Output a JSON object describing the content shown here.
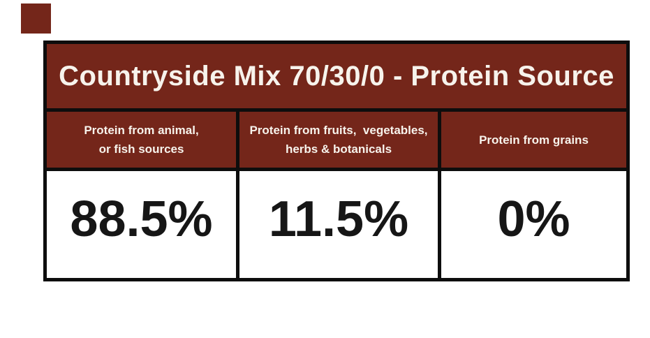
{
  "page": {
    "background_color": "#ffffff"
  },
  "decoration": {
    "corner_square_color": "#74261a"
  },
  "colors": {
    "band_maroon": "#74261a",
    "band_text": "#f7f3ec",
    "border_black": "#0d0d0d",
    "value_text": "#161616",
    "value_cell_bg": "#ffffff"
  },
  "table": {
    "title": "Countryside Mix 70/30/0 - Protein Source",
    "columns": [
      {
        "header_line1": "Protein from animal,",
        "header_line2": "or fish sources",
        "value": "88.5%"
      },
      {
        "header_line1": "Protein from fruits,  vegetables,",
        "header_line2": "herbs & botanicals",
        "value": "11.5%"
      },
      {
        "header_line1": "Protein from grains",
        "header_line2": "",
        "value": "0%"
      }
    ]
  },
  "chart_data": {
    "type": "table",
    "title": "Countryside Mix 70/30/0 - Protein Source",
    "categories": [
      "Protein from animal, or fish sources",
      "Protein from fruits, vegetables, herbs & botanicals",
      "Protein from grains"
    ],
    "values": [
      88.5,
      11.5,
      0
    ],
    "unit": "%"
  }
}
